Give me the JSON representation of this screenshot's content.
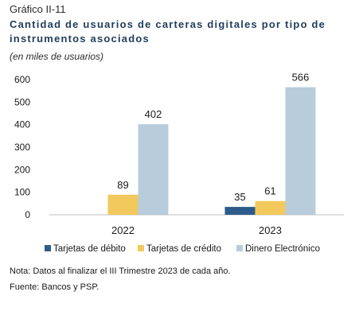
{
  "figure": {
    "number": "Gráfico II-11",
    "title": "Cantidad de usuarios de carteras digitales por tipo de instrumentos asociados",
    "subtitle": "(en miles de usuarios)",
    "note": "Nota: Datos al finalizar el III Trimestre 2023 de cada año.",
    "source": "Fuente: Bancos y PSP."
  },
  "chart_data": {
    "type": "bar",
    "categories": [
      "2022",
      "2023"
    ],
    "series": [
      {
        "name": "Tarjetas de débito",
        "color": "#2e5c8a",
        "values": [
          0,
          35
        ],
        "labels": [
          "",
          "35"
        ]
      },
      {
        "name": "Tarjetas de crédito",
        "color": "#f2c95c",
        "values": [
          89,
          61
        ],
        "labels": [
          "89",
          "61"
        ]
      },
      {
        "name": "Dinero Electrónico",
        "color": "#b8ccdc",
        "values": [
          402,
          566
        ],
        "labels": [
          "402",
          "566"
        ]
      }
    ],
    "ylim": [
      0,
      600
    ],
    "yticks": [
      0,
      100,
      200,
      300,
      400,
      500,
      600
    ],
    "grid": false,
    "legend_position": "bottom"
  }
}
